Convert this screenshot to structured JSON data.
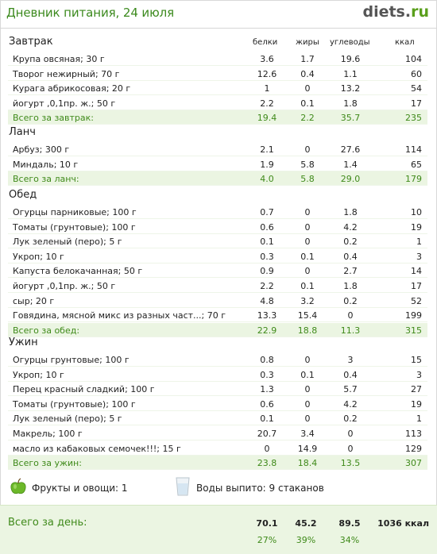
{
  "header": {
    "title": "Дневник питания, 24 июля",
    "logo_main": "diets",
    "logo_dot": ".",
    "logo_tld": "ru"
  },
  "columns": {
    "b": "белки",
    "f": "жиры",
    "c": "углеводы",
    "k": "ккал"
  },
  "sections": [
    {
      "title": "Завтрак",
      "rows": [
        {
          "name": "Крупа овсяная; 30 г",
          "b": "3.6",
          "f": "1.7",
          "c": "19.6",
          "k": "104"
        },
        {
          "name": "Творог нежирный; 70 г",
          "b": "12.6",
          "f": "0.4",
          "c": "1.1",
          "k": "60"
        },
        {
          "name": "Курага абрикосовая; 20 г",
          "b": "1",
          "f": "0",
          "c": "13.2",
          "k": "54"
        },
        {
          "name": "йогурт ,0,1пр. ж.; 50 г",
          "b": "2.2",
          "f": "0.1",
          "c": "1.8",
          "k": "17"
        }
      ],
      "total": {
        "name": "Всего за завтрак:",
        "b": "19.4",
        "f": "2.2",
        "c": "35.7",
        "k": "235"
      }
    },
    {
      "title": "Ланч",
      "rows": [
        {
          "name": "Арбуз; 300 г",
          "b": "2.1",
          "f": "0",
          "c": "27.6",
          "k": "114"
        },
        {
          "name": "Миндаль; 10 г",
          "b": "1.9",
          "f": "5.8",
          "c": "1.4",
          "k": "65"
        }
      ],
      "total": {
        "name": "Всего за ланч:",
        "b": "4.0",
        "f": "5.8",
        "c": "29.0",
        "k": "179"
      }
    },
    {
      "title": "Обед",
      "rows": [
        {
          "name": "Огурцы парниковые; 100 г",
          "b": "0.7",
          "f": "0",
          "c": "1.8",
          "k": "10"
        },
        {
          "name": "Томаты (грунтовые); 100 г",
          "b": "0.6",
          "f": "0",
          "c": "4.2",
          "k": "19"
        },
        {
          "name": "Лук зеленый (перо); 5 г",
          "b": "0.1",
          "f": "0",
          "c": "0.2",
          "k": "1"
        },
        {
          "name": "Укроп; 10 г",
          "b": "0.3",
          "f": "0.1",
          "c": "0.4",
          "k": "3"
        },
        {
          "name": "Капуста белокачанная; 50 г",
          "b": "0.9",
          "f": "0",
          "c": "2.7",
          "k": "14"
        },
        {
          "name": "йогурт ,0,1пр. ж.; 50 г",
          "b": "2.2",
          "f": "0.1",
          "c": "1.8",
          "k": "17"
        },
        {
          "name": "сыр; 20 г",
          "b": "4.8",
          "f": "3.2",
          "c": "0.2",
          "k": "52"
        },
        {
          "name": "Говядина, мясной микс из разных част...; 70 г",
          "b": "13.3",
          "f": "15.4",
          "c": "0",
          "k": "199"
        }
      ],
      "total": {
        "name": "Всего за обед:",
        "b": "22.9",
        "f": "18.8",
        "c": "11.3",
        "k": "315"
      }
    },
    {
      "title": "Ужин",
      "rows": [
        {
          "name": "Огурцы грунтовые; 100 г",
          "b": "0.8",
          "f": "0",
          "c": "3",
          "k": "15"
        },
        {
          "name": "Укроп; 10 г",
          "b": "0.3",
          "f": "0.1",
          "c": "0.4",
          "k": "3"
        },
        {
          "name": "Перец красный сладкий; 100 г",
          "b": "1.3",
          "f": "0",
          "c": "5.7",
          "k": "27"
        },
        {
          "name": "Томаты (грунтовые); 100 г",
          "b": "0.6",
          "f": "0",
          "c": "4.2",
          "k": "19"
        },
        {
          "name": "Лук зеленый (перо); 5 г",
          "b": "0.1",
          "f": "0",
          "c": "0.2",
          "k": "1"
        },
        {
          "name": "Макрель; 100 г",
          "b": "20.7",
          "f": "3.4",
          "c": "0",
          "k": "113"
        },
        {
          "name": "масло из кабаковых семочек!!!; 15 г",
          "b": "0",
          "f": "14.9",
          "c": "0",
          "k": "129"
        }
      ],
      "total": {
        "name": "Всего за ужин:",
        "b": "23.8",
        "f": "18.4",
        "c": "13.5",
        "k": "307"
      }
    }
  ],
  "extras": {
    "fruits_label": "Фрукты и овощи: 1",
    "water_label": "Воды выпито: 9 стаканов",
    "apple_icon": "apple-icon",
    "glass_icon": "glass-icon"
  },
  "summary": {
    "label": "Всего за день:",
    "b": "70.1",
    "f": "45.2",
    "c": "89.5",
    "k": "1036 ккал",
    "b_pct": "27%",
    "f_pct": "39%",
    "c_pct": "34%"
  },
  "colors": {
    "accent_green": "#3f8a1a",
    "total_bg": "#ebf5e2",
    "title_green": "#3c8a1e"
  }
}
